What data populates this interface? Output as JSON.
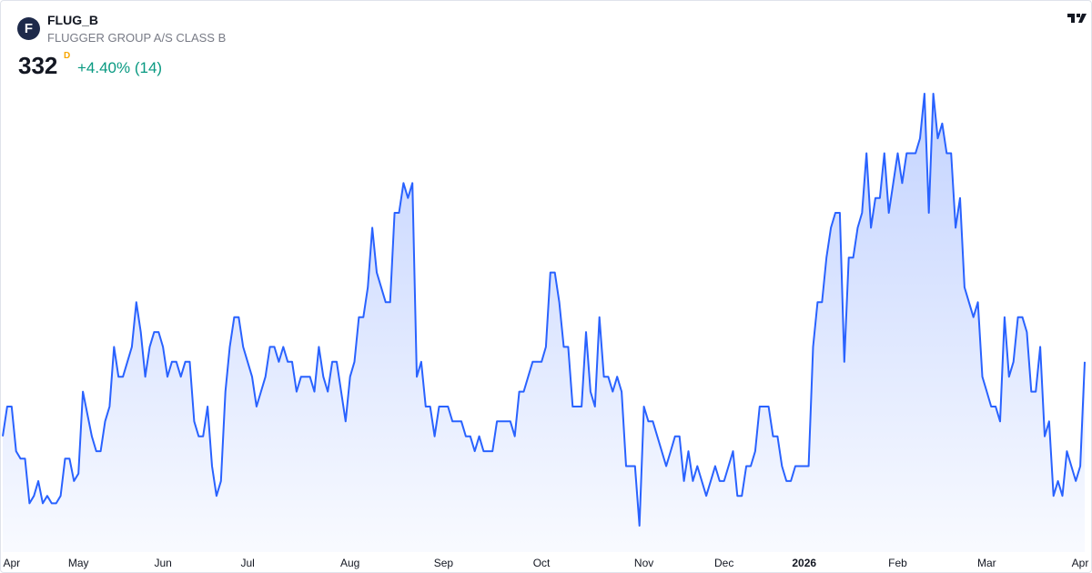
{
  "header": {
    "logo": "F",
    "symbol": "FLUG_B",
    "name": "FLUGGER GROUP A/S CLASS B",
    "price": "332",
    "price_flag": "D",
    "change": "+4.40% (14)"
  },
  "chart_data": {
    "type": "area",
    "color": "#2962ff",
    "values": [
      322,
      326,
      326,
      320,
      319,
      319,
      313,
      314,
      316,
      313,
      314,
      313,
      313,
      314,
      319,
      319,
      316,
      317,
      328,
      325,
      322,
      320,
      320,
      324,
      326,
      334,
      330,
      330,
      332,
      334,
      340,
      336,
      330,
      334,
      336,
      336,
      334,
      330,
      332,
      332,
      330,
      332,
      332,
      324,
      322,
      322,
      326,
      318,
      314,
      316,
      328,
      334,
      338,
      338,
      334,
      332,
      330,
      326,
      328,
      330,
      334,
      334,
      332,
      334,
      332,
      332,
      328,
      330,
      330,
      330,
      328,
      334,
      330,
      328,
      332,
      332,
      328,
      324,
      330,
      332,
      338,
      338,
      342,
      350,
      344,
      342,
      340,
      340,
      352,
      352,
      356,
      354,
      356,
      330,
      332,
      326,
      326,
      322,
      326,
      326,
      326,
      324,
      324,
      324,
      322,
      322,
      320,
      322,
      320,
      320,
      320,
      324,
      324,
      324,
      324,
      322,
      328,
      328,
      330,
      332,
      332,
      332,
      334,
      344,
      344,
      340,
      334,
      334,
      326,
      326,
      326,
      336,
      328,
      326,
      338,
      330,
      330,
      328,
      330,
      328,
      318,
      318,
      318,
      310,
      326,
      324,
      324,
      322,
      320,
      318,
      320,
      322,
      322,
      316,
      320,
      316,
      318,
      316,
      314,
      316,
      318,
      316,
      316,
      318,
      320,
      314,
      314,
      318,
      318,
      320,
      326,
      326,
      326,
      322,
      322,
      318,
      316,
      316,
      318,
      318,
      318,
      318,
      334,
      340,
      340,
      346,
      350,
      352,
      352,
      332,
      346,
      346,
      350,
      352,
      360,
      350,
      354,
      354,
      360,
      352,
      356,
      360,
      356,
      360,
      360,
      360,
      362,
      368,
      352,
      368,
      362,
      364,
      360,
      360,
      350,
      354,
      342,
      340,
      338,
      340,
      330,
      328,
      326,
      326,
      324,
      338,
      330,
      332,
      338,
      338,
      336,
      328,
      328,
      334,
      322,
      324,
      314,
      316,
      314,
      320,
      318,
      316,
      318,
      332
    ],
    "xticks": [
      {
        "value": 2,
        "label": "Apr"
      },
      {
        "value": 17,
        "label": "May"
      },
      {
        "value": 36,
        "label": "Jun"
      },
      {
        "value": 55,
        "label": "Jul"
      },
      {
        "value": 78,
        "label": "Aug"
      },
      {
        "value": 99,
        "label": "Sep"
      },
      {
        "value": 121,
        "label": "Oct"
      },
      {
        "value": 144,
        "label": "Nov"
      },
      {
        "value": 162,
        "label": "Dec"
      },
      {
        "value": 180,
        "label": "2026"
      },
      {
        "value": 201,
        "label": "Feb"
      },
      {
        "value": 221,
        "label": "Mar"
      },
      {
        "value": 242,
        "label": "Apr"
      }
    ]
  }
}
